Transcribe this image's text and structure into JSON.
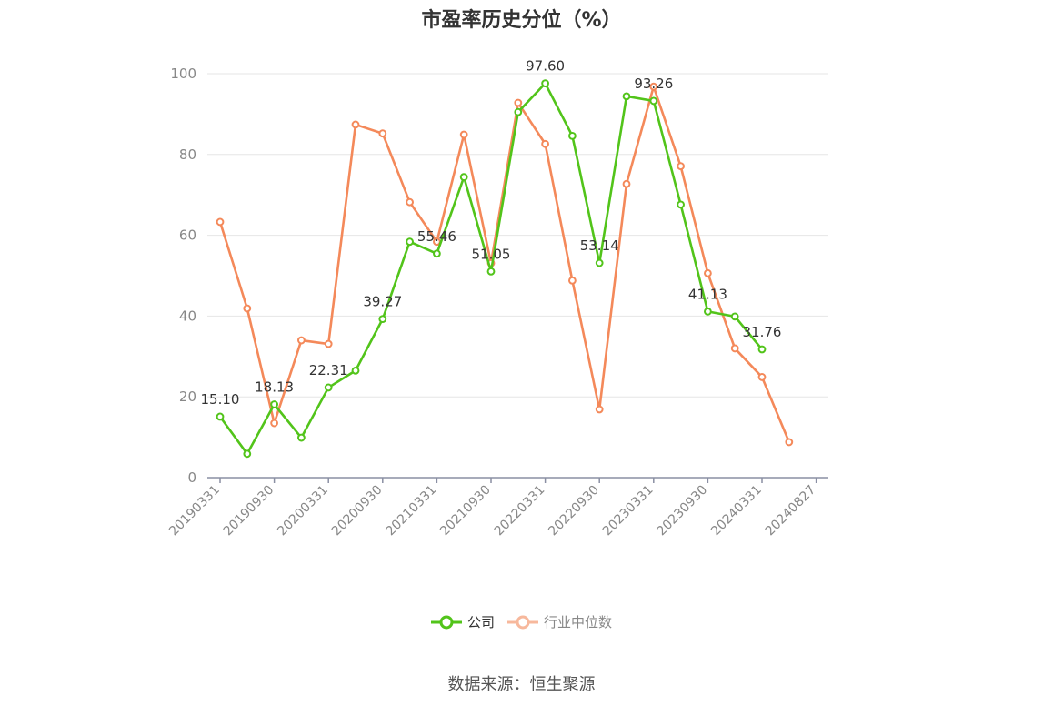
{
  "chart_data": {
    "type": "line",
    "title": "市盈率历史分位（%）",
    "ylim": [
      0,
      100
    ],
    "yticks": [
      0,
      20,
      40,
      60,
      80,
      100
    ],
    "x_tick_labels": [
      "20190331",
      "20190930",
      "20200331",
      "20200930",
      "20210331",
      "20210930",
      "20220331",
      "20220930",
      "20230331",
      "20230930",
      "20240331",
      "20240827"
    ],
    "x": [
      "20190331",
      "20190630",
      "20190930",
      "20191231",
      "20200331",
      "20200630",
      "20200930",
      "20201231",
      "20210331",
      "20210630",
      "20210930",
      "20211231",
      "20220331",
      "20220630",
      "20220930",
      "20221231",
      "20230331",
      "20230630",
      "20230930",
      "20231231",
      "20240331",
      "20240827"
    ],
    "series": [
      {
        "name": "公司",
        "color": "#52c41a",
        "values": [
          15.1,
          5.9,
          18.13,
          9.9,
          22.31,
          26.5,
          39.27,
          58.4,
          55.46,
          74.4,
          51.05,
          90.5,
          97.6,
          84.6,
          53.14,
          94.4,
          93.26,
          67.6,
          41.13,
          39.9,
          31.76,
          null
        ],
        "labels": [
          "15.10",
          "",
          "18.13",
          "",
          "22.31",
          "",
          "39.27",
          "",
          "55.46",
          "",
          "51.05",
          "",
          "97.60",
          "",
          "53.14",
          "",
          "93.26",
          "",
          "41.13",
          "",
          "31.76",
          ""
        ]
      },
      {
        "name": "行业中位数",
        "color": "#f4895a",
        "values": [
          63.3,
          41.9,
          13.5,
          34.0,
          33.1,
          87.4,
          85.2,
          68.2,
          58.4,
          84.9,
          53.1,
          92.8,
          82.6,
          48.8,
          16.9,
          72.7,
          96.8,
          77.1,
          50.6,
          32.0,
          24.9,
          8.8
        ]
      }
    ],
    "legend": {
      "placement": "bottom-center"
    },
    "grid": true
  },
  "source_text": "数据来源：恒生聚源"
}
